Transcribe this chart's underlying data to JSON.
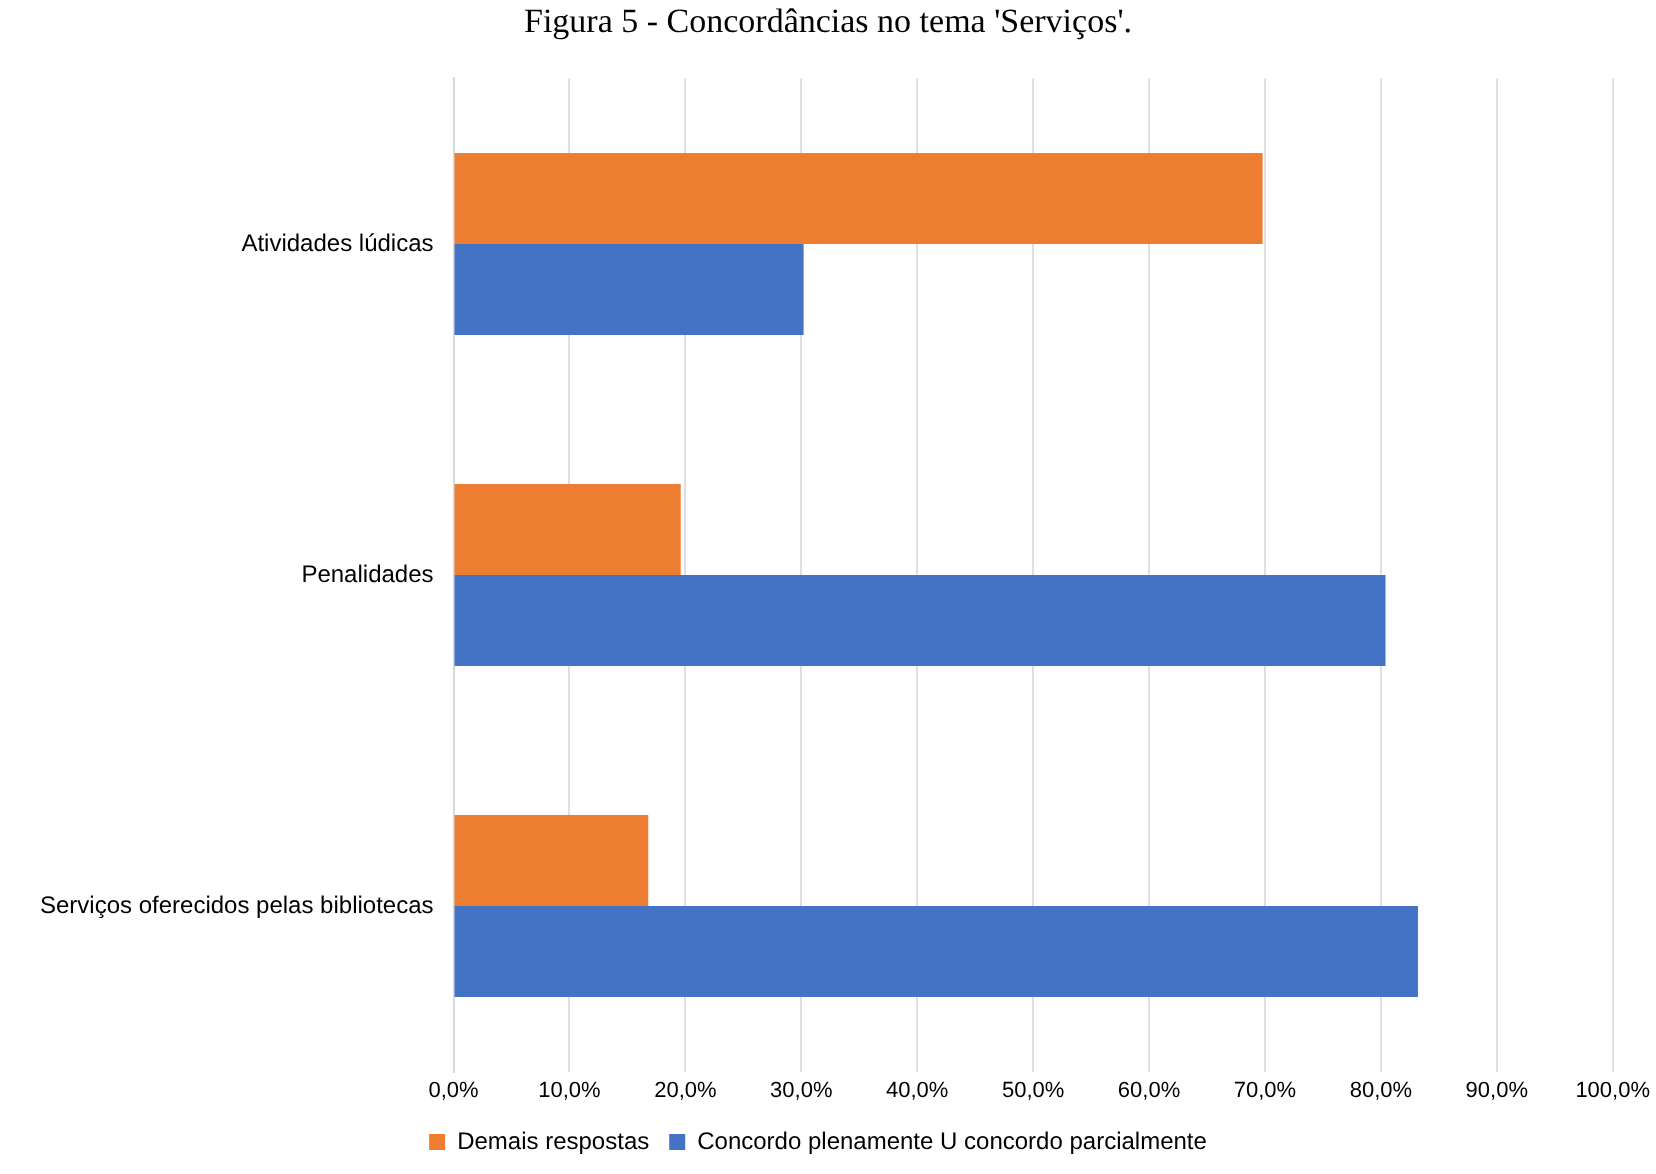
{
  "chart_data": {
    "type": "bar",
    "orientation": "horizontal",
    "title": "Figura 5 - Concordâncias no tema 'Serviços'.",
    "categories": [
      "Atividades lúdicas",
      "Penalidades",
      "Serviços oferecidos pelas bibliotecas"
    ],
    "series": [
      {
        "name": "Demais respostas",
        "color": "#ed7d31",
        "values": [
          69.8,
          19.6,
          16.8
        ]
      },
      {
        "name": "Concordo plenamente U concordo parcialmente",
        "color": "#4472c4",
        "values": [
          30.2,
          80.4,
          83.2
        ]
      }
    ],
    "xlim": [
      0,
      100
    ],
    "xticks": [
      {
        "value": 0,
        "label": "0,0%"
      },
      {
        "value": 10,
        "label": "10,0%"
      },
      {
        "value": 20,
        "label": "20,0%"
      },
      {
        "value": 30,
        "label": "30,0%"
      },
      {
        "value": 40,
        "label": "40,0%"
      },
      {
        "value": 50,
        "label": "50,0%"
      },
      {
        "value": 60,
        "label": "60,0%"
      },
      {
        "value": 70,
        "label": "70,0%"
      },
      {
        "value": 80,
        "label": "80,0%"
      },
      {
        "value": 90,
        "label": "90,0%"
      },
      {
        "value": 100,
        "label": "100,0%"
      }
    ],
    "grid": "x",
    "legend": "bottom"
  }
}
